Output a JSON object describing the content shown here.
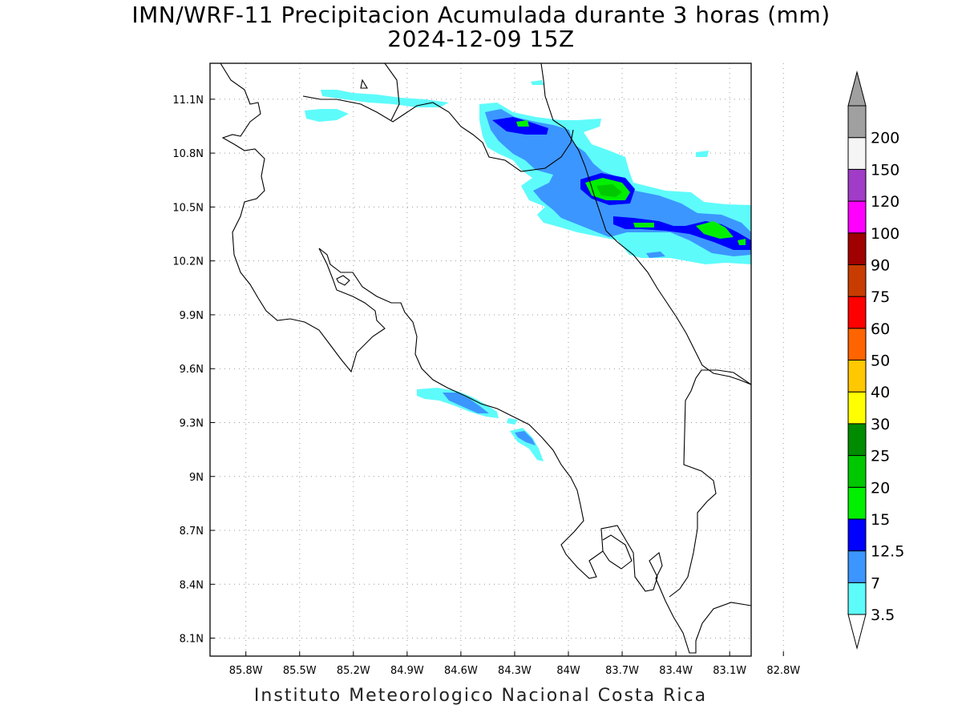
{
  "title": {
    "line1": "IMN/WRF-11 Precipitacion Acumulada durante 3 horas (mm)",
    "line2": "2024-12-09 15Z"
  },
  "footer": "Instituto Meteorologico Nacional Costa Rica",
  "map": {
    "lon_range": [
      -86.0,
      -82.98
    ],
    "lat_range": [
      8.0,
      11.3
    ],
    "lon_ticks": [
      {
        "value": -85.8,
        "label": "85.8W"
      },
      {
        "value": -85.5,
        "label": "85.5W"
      },
      {
        "value": -85.2,
        "label": "85.2W"
      },
      {
        "value": -84.9,
        "label": "84.9W"
      },
      {
        "value": -84.6,
        "label": "84.6W"
      },
      {
        "value": -84.3,
        "label": "84.3W"
      },
      {
        "value": -84.0,
        "label": "84W"
      },
      {
        "value": -83.7,
        "label": "83.7W"
      },
      {
        "value": -83.4,
        "label": "83.4W"
      },
      {
        "value": -83.1,
        "label": "83.1W"
      },
      {
        "value": -82.8,
        "label": "82.8W"
      }
    ],
    "lat_ticks": [
      {
        "value": 8.1,
        "label": "8.1N"
      },
      {
        "value": 8.4,
        "label": "8.4N"
      },
      {
        "value": 8.7,
        "label": "8.7N"
      },
      {
        "value": 9.0,
        "label": "9N"
      },
      {
        "value": 9.3,
        "label": "9.3N"
      },
      {
        "value": 9.6,
        "label": "9.6N"
      },
      {
        "value": 9.9,
        "label": "9.9N"
      },
      {
        "value": 10.2,
        "label": "10.2N"
      },
      {
        "value": 10.5,
        "label": "10.5N"
      },
      {
        "value": 10.8,
        "label": "10.8N"
      },
      {
        "value": 11.1,
        "label": "11.1N"
      }
    ],
    "grid": true,
    "coastline_color": "#000000"
  },
  "colorbar": {
    "levels": [
      "3.5",
      "7",
      "12.5",
      "15",
      "20",
      "25",
      "30",
      "40",
      "50",
      "60",
      "75",
      "90",
      "100",
      "120",
      "150",
      "200"
    ],
    "colors": [
      "#5efbfb",
      "#3c96ff",
      "#0000ff",
      "#00f000",
      "#00c800",
      "#008c00",
      "#ffff00",
      "#ffc800",
      "#ff6400",
      "#ff0000",
      "#c83c00",
      "#a00000",
      "#ff00ff",
      "#a03cc8",
      "#f5f5f5",
      "#a0a0a0"
    ],
    "extends": "both"
  }
}
